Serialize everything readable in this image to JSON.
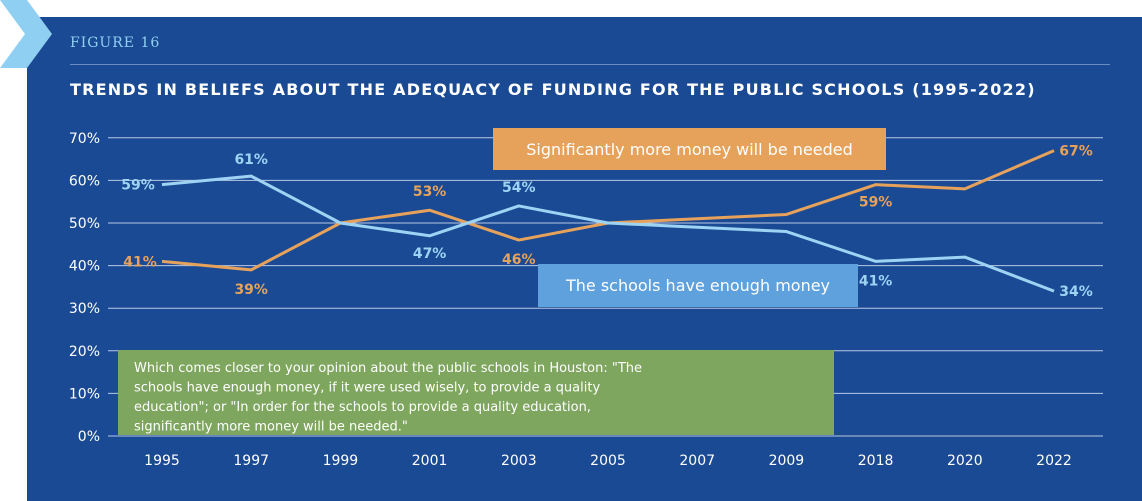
{
  "header": {
    "figure_label": "FIGURE 16",
    "title": "TRENDS IN BELIEFS ABOUT THE ADEQUACY OF FUNDING FOR THE PUBLIC SCHOOLS (1995-2022)"
  },
  "colors": {
    "background": "#1b4a94",
    "more_money": "#e6a25a",
    "enough_money": "#9fd3f4",
    "gridline": "#b7c8e6",
    "note_box": "#7ea65e",
    "chevron": "#8fd0f2"
  },
  "chart_data": {
    "type": "line",
    "categories": [
      "1995",
      "1997",
      "1999",
      "2001",
      "2003",
      "2005",
      "2007",
      "2009",
      "2018",
      "2020",
      "2022"
    ],
    "ylim": [
      0,
      70
    ],
    "yticks": [
      "0%",
      "10%",
      "20%",
      "30%",
      "40%",
      "50%",
      "60%",
      "70%"
    ],
    "grid": true,
    "series": [
      {
        "name": "Significantly more money will be needed",
        "color": "#e6a25a",
        "values": [
          41,
          39,
          50,
          53,
          46,
          50,
          51,
          52,
          59,
          58,
          67
        ],
        "labels": [
          "41%",
          "39%",
          "",
          "53%",
          "46%",
          "",
          "",
          "",
          "59%",
          "",
          "67%"
        ]
      },
      {
        "name": "The schools have enough money",
        "color": "#9fd3f4",
        "values": [
          59,
          61,
          50,
          47,
          54,
          50,
          49,
          48,
          41,
          42,
          34
        ],
        "labels": [
          "59%",
          "61%",
          "",
          "47%",
          "54%",
          "",
          "",
          "",
          "41%",
          "",
          "34%"
        ]
      }
    ],
    "annotation": "Which comes closer to your opinion about the public schools in Houston: \"The schools have enough money, if it were used wisely, to provide a quality education\"; or \"In order for the schools to provide a quality education, significantly more money will be needed.\""
  }
}
